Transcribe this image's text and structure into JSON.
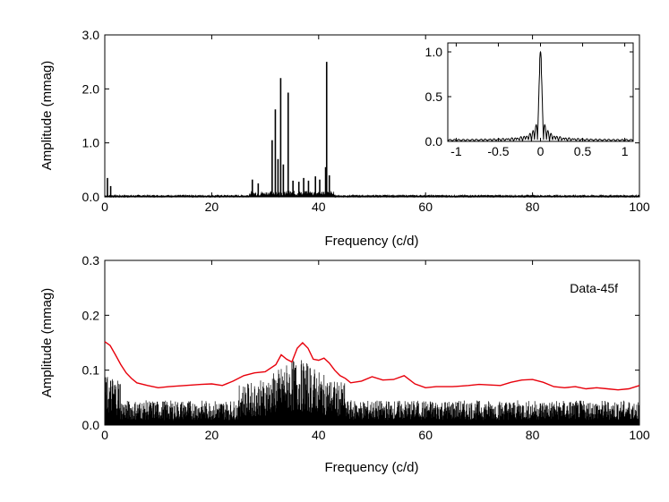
{
  "chart_data": [
    {
      "type": "line",
      "id": "top",
      "xlabel": "Frequency (c/d)",
      "ylabel": "Amplitude (mmag)",
      "xlim": [
        0,
        100
      ],
      "ylim": [
        0,
        3
      ],
      "x_ticks": [
        0,
        20,
        40,
        60,
        80,
        100
      ],
      "y_ticks": [
        0,
        1,
        2,
        3
      ],
      "y_tick_labels": [
        "0.0",
        "1.0",
        "2.0",
        "3.0"
      ],
      "series": [
        {
          "name": "periodogram",
          "color": "#000000",
          "peaks": [
            {
              "x": 0.5,
              "y": 0.35
            },
            {
              "x": 1.1,
              "y": 0.2
            },
            {
              "x": 27.6,
              "y": 0.32
            },
            {
              "x": 28.7,
              "y": 0.25
            },
            {
              "x": 31.3,
              "y": 1.05
            },
            {
              "x": 31.9,
              "y": 1.62
            },
            {
              "x": 32.4,
              "y": 0.7
            },
            {
              "x": 32.9,
              "y": 2.2
            },
            {
              "x": 33.4,
              "y": 0.6
            },
            {
              "x": 34.3,
              "y": 1.93
            },
            {
              "x": 35.2,
              "y": 0.3
            },
            {
              "x": 36.3,
              "y": 0.28
            },
            {
              "x": 37.2,
              "y": 0.35
            },
            {
              "x": 38.1,
              "y": 0.3
            },
            {
              "x": 39.4,
              "y": 0.38
            },
            {
              "x": 40.2,
              "y": 0.32
            },
            {
              "x": 41.3,
              "y": 0.55
            },
            {
              "x": 41.5,
              "y": 2.5
            },
            {
              "x": 42.0,
              "y": 0.4
            }
          ],
          "noise_level": 0.04
        }
      ],
      "inset": {
        "type": "line",
        "description": "spectral window",
        "xlim": [
          -1.1,
          1.1
        ],
        "ylim": [
          0,
          1.1
        ],
        "x_ticks": [
          -1,
          -0.5,
          0,
          0.5,
          1
        ],
        "x_tick_labels": [
          "-1",
          "-0.5",
          "0",
          "0.5",
          "1"
        ],
        "y_ticks": [
          0,
          0.5,
          1.0
        ],
        "y_tick_labels": [
          "0.0",
          "0.5",
          "1.0"
        ],
        "peak": {
          "x": 0,
          "y": 1.0
        }
      }
    },
    {
      "type": "line",
      "id": "bottom",
      "xlabel": "Frequency (c/d)",
      "ylabel": "Amplitude (mmag)",
      "xlim": [
        0,
        100
      ],
      "ylim": [
        0,
        0.3
      ],
      "x_ticks": [
        0,
        20,
        40,
        60,
        80,
        100
      ],
      "y_ticks": [
        0,
        0.1,
        0.2,
        0.3
      ],
      "y_tick_labels": [
        "0.0",
        "0.1",
        "0.2",
        "0.3"
      ],
      "annotation": "Data-45f",
      "series": [
        {
          "name": "residual periodogram",
          "color": "#000000",
          "noise_level": 0.03
        },
        {
          "name": "noise level",
          "color": "#e8000b",
          "x": [
            0,
            1,
            2,
            3,
            4,
            5,
            6,
            8,
            10,
            12,
            15,
            18,
            20,
            22,
            24,
            26,
            28,
            30,
            32,
            33,
            34,
            35,
            36,
            37,
            38,
            39,
            40,
            41,
            42,
            43,
            44,
            45,
            46,
            48,
            50,
            52,
            54,
            56,
            58,
            60,
            62,
            65,
            68,
            70,
            72,
            74,
            76,
            78,
            80,
            82,
            84,
            86,
            88,
            90,
            92,
            94,
            96,
            98,
            100
          ],
          "y": [
            0.152,
            0.145,
            0.128,
            0.11,
            0.095,
            0.085,
            0.077,
            0.072,
            0.068,
            0.07,
            0.072,
            0.074,
            0.075,
            0.072,
            0.08,
            0.09,
            0.095,
            0.097,
            0.11,
            0.128,
            0.12,
            0.115,
            0.14,
            0.15,
            0.14,
            0.12,
            0.118,
            0.122,
            0.113,
            0.1,
            0.09,
            0.085,
            0.077,
            0.08,
            0.088,
            0.082,
            0.083,
            0.09,
            0.075,
            0.068,
            0.07,
            0.07,
            0.072,
            0.074,
            0.073,
            0.072,
            0.078,
            0.082,
            0.083,
            0.078,
            0.07,
            0.068,
            0.07,
            0.066,
            0.068,
            0.066,
            0.064,
            0.066,
            0.072
          ]
        }
      ]
    }
  ]
}
